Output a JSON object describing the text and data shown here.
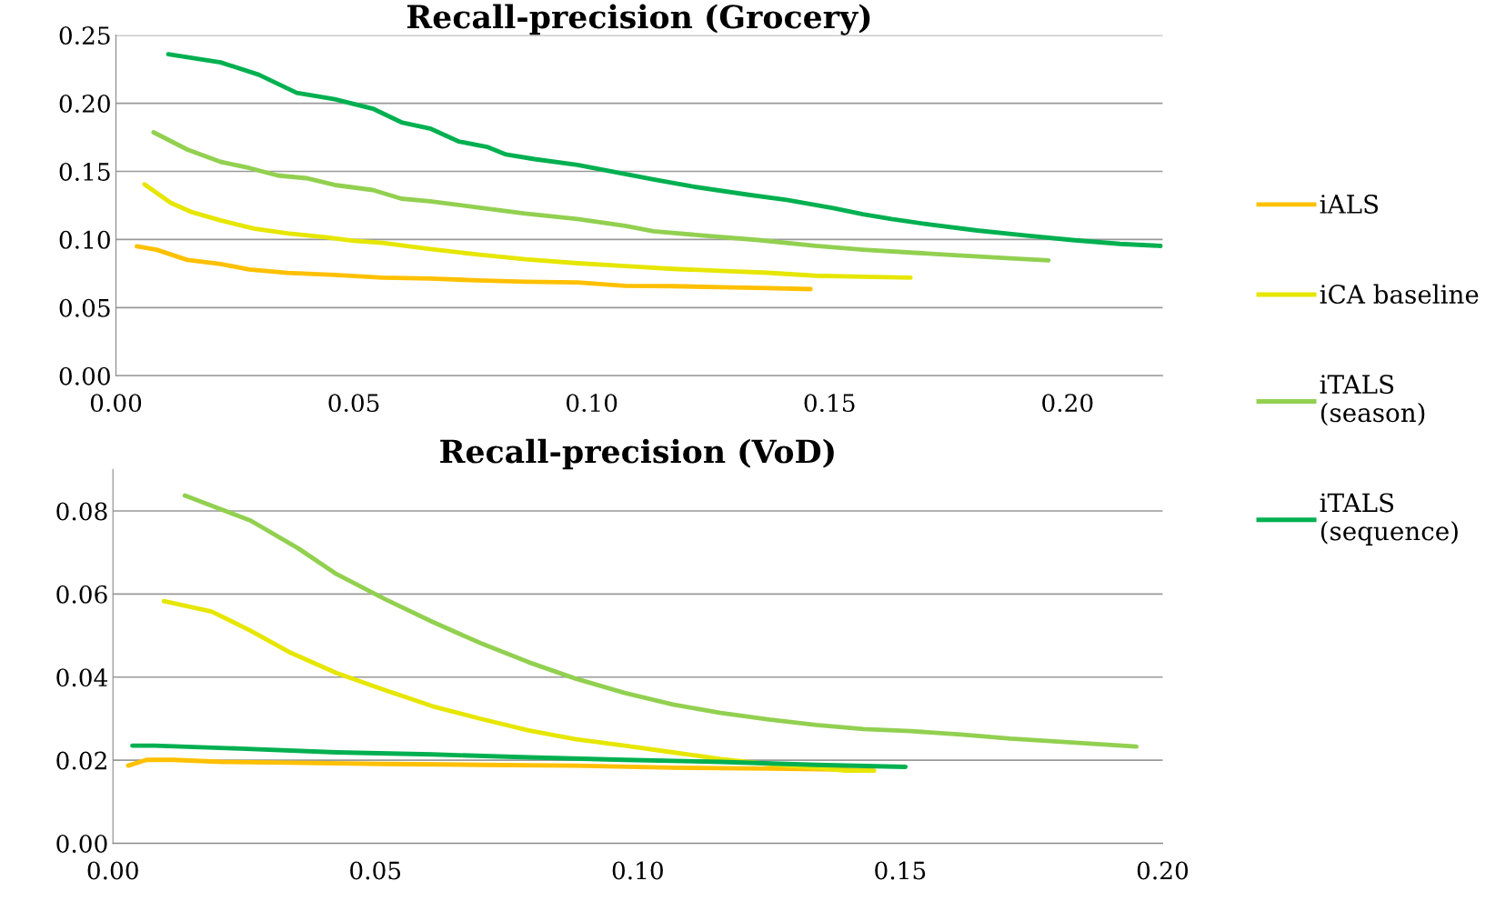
{
  "chart_data": [
    {
      "type": "line",
      "title": "Recall-precision (Grocery)",
      "xlim": [
        0,
        0.22
      ],
      "ylim": [
        0,
        0.25
      ],
      "xticks": [
        {
          "value": 0,
          "label": "0.00"
        },
        {
          "value": 0.05,
          "label": "0.05"
        },
        {
          "value": 0.1,
          "label": "0.10"
        },
        {
          "value": 0.15,
          "label": "0.15"
        },
        {
          "value": 0.2,
          "label": "0.20"
        }
      ],
      "yticks": [
        {
          "value": 0,
          "label": "0.00"
        },
        {
          "value": 0.05,
          "label": "0.05"
        },
        {
          "value": 0.1,
          "label": "0.10"
        },
        {
          "value": 0.15,
          "label": "0.15"
        },
        {
          "value": 0.2,
          "label": "0.20"
        },
        {
          "value": 0.25,
          "label": "0.25"
        }
      ],
      "grid": "y",
      "legend": "right",
      "marker": "none",
      "line_style": "solid",
      "series": [
        {
          "name": "iALS",
          "color": "#ffc000",
          "x": [
            0.0044,
            0.0085,
            0.015,
            0.022,
            0.028,
            0.036,
            0.046,
            0.056,
            0.066,
            0.076,
            0.086,
            0.097,
            0.107,
            0.117,
            0.127,
            0.137,
            0.146
          ],
          "values": [
            0.095,
            0.0925,
            0.085,
            0.082,
            0.078,
            0.0755,
            0.074,
            0.072,
            0.0713,
            0.07,
            0.069,
            0.0685,
            0.066,
            0.0657,
            0.065,
            0.0643,
            0.0636
          ]
        },
        {
          "name": "iCA baseline",
          "color": "#e6e600",
          "x": [
            0.006,
            0.0115,
            0.016,
            0.022,
            0.029,
            0.036,
            0.044,
            0.05,
            0.056,
            0.066,
            0.076,
            0.086,
            0.097,
            0.107,
            0.117,
            0.127,
            0.137,
            0.147,
            0.157,
            0.167
          ],
          "values": [
            0.1405,
            0.127,
            0.12,
            0.114,
            0.108,
            0.1045,
            0.1017,
            0.099,
            0.0975,
            0.093,
            0.089,
            0.0855,
            0.0826,
            0.0805,
            0.0784,
            0.077,
            0.0756,
            0.0734,
            0.0727,
            0.072
          ]
        },
        {
          "name": "iTALS (season)",
          "color": "#92d050",
          "x": [
            0.0079,
            0.015,
            0.022,
            0.028,
            0.034,
            0.04,
            0.046,
            0.054,
            0.06,
            0.066,
            0.076,
            0.086,
            0.097,
            0.107,
            0.113,
            0.123,
            0.135,
            0.147,
            0.157,
            0.167,
            0.177,
            0.188,
            0.196
          ],
          "values": [
            0.1787,
            0.166,
            0.157,
            0.1525,
            0.147,
            0.145,
            0.14,
            0.1363,
            0.13,
            0.128,
            0.1236,
            0.119,
            0.115,
            0.11,
            0.106,
            0.103,
            0.0996,
            0.0953,
            0.0925,
            0.0904,
            0.0883,
            0.0862,
            0.0847
          ]
        },
        {
          "name": "iTALS (sequence)",
          "color": "#00b050",
          "x": [
            0.011,
            0.022,
            0.03,
            0.038,
            0.046,
            0.054,
            0.06,
            0.066,
            0.072,
            0.078,
            0.082,
            0.088,
            0.097,
            0.107,
            0.113,
            0.121,
            0.133,
            0.141,
            0.151,
            0.157,
            0.163,
            0.171,
            0.181,
            0.191,
            0.201,
            0.211,
            0.2196
          ],
          "values": [
            0.236,
            0.23,
            0.221,
            0.2076,
            0.203,
            0.196,
            0.186,
            0.1815,
            0.172,
            0.168,
            0.1624,
            0.159,
            0.1547,
            0.148,
            0.144,
            0.139,
            0.1328,
            0.129,
            0.1229,
            0.1186,
            0.115,
            0.111,
            0.1066,
            0.103,
            0.0996,
            0.0968,
            0.0953
          ]
        }
      ]
    },
    {
      "type": "line",
      "title": "Recall-precision (VoD)",
      "xlim": [
        0,
        0.2
      ],
      "ylim": [
        0,
        0.09
      ],
      "xticks": [
        {
          "value": 0,
          "label": "0.00"
        },
        {
          "value": 0.05,
          "label": "0.05"
        },
        {
          "value": 0.1,
          "label": "0.10"
        },
        {
          "value": 0.15,
          "label": "0.15"
        },
        {
          "value": 0.2,
          "label": "0.20"
        }
      ],
      "yticks": [
        {
          "value": 0,
          "label": "0.00"
        },
        {
          "value": 0.02,
          "label": "0.02"
        },
        {
          "value": 0.04,
          "label": "0.04"
        },
        {
          "value": 0.06,
          "label": "0.06"
        },
        {
          "value": 0.08,
          "label": "0.08"
        }
      ],
      "grid": "y",
      "marker": "none",
      "line_style": "solid",
      "series": [
        {
          "color": "#ffc000",
          "x": [
            0.0029,
            0.0064,
            0.0115,
            0.0207,
            0.0335,
            0.0518,
            0.07,
            0.088,
            0.1067,
            0.125,
            0.1378,
            0.145
          ],
          "values": [
            0.0187,
            0.0201,
            0.0201,
            0.0196,
            0.0194,
            0.0191,
            0.0189,
            0.0187,
            0.0182,
            0.018,
            0.0178,
            0.0175
          ]
        },
        {
          "color": "#e6e600",
          "x": [
            0.0097,
            0.0188,
            0.0262,
            0.0335,
            0.0426,
            0.0518,
            0.0609,
            0.07,
            0.0792,
            0.088,
            0.0975,
            0.1067,
            0.1158,
            0.125,
            0.134,
            0.1396,
            0.145
          ],
          "values": [
            0.0583,
            0.0558,
            0.0512,
            0.0461,
            0.041,
            0.0369,
            0.033,
            0.03,
            0.0272,
            0.0251,
            0.0235,
            0.0219,
            0.0203,
            0.0191,
            0.0182,
            0.0175,
            0.0175
          ]
        },
        {
          "color": "#92d050",
          "x": [
            0.0137,
            0.0262,
            0.0353,
            0.0426,
            0.0518,
            0.0609,
            0.07,
            0.0792,
            0.088,
            0.0975,
            0.1067,
            0.1158,
            0.125,
            0.134,
            0.143,
            0.152,
            0.1616,
            0.171,
            0.18,
            0.195
          ],
          "values": [
            0.0837,
            0.0777,
            0.071,
            0.0648,
            0.0588,
            0.0533,
            0.0482,
            0.0436,
            0.0397,
            0.0362,
            0.0334,
            0.0314,
            0.0298,
            0.0285,
            0.0275,
            0.027,
            0.0262,
            0.0252,
            0.0245,
            0.0233
          ]
        },
        {
          "color": "#00b050",
          "x": [
            0.0037,
            0.0079,
            0.0243,
            0.0426,
            0.0609,
            0.0792,
            0.0975,
            0.1158,
            0.134,
            0.151
          ],
          "values": [
            0.0235,
            0.0235,
            0.0228,
            0.0219,
            0.0214,
            0.0207,
            0.0201,
            0.0196,
            0.0189,
            0.0184
          ]
        }
      ]
    }
  ]
}
